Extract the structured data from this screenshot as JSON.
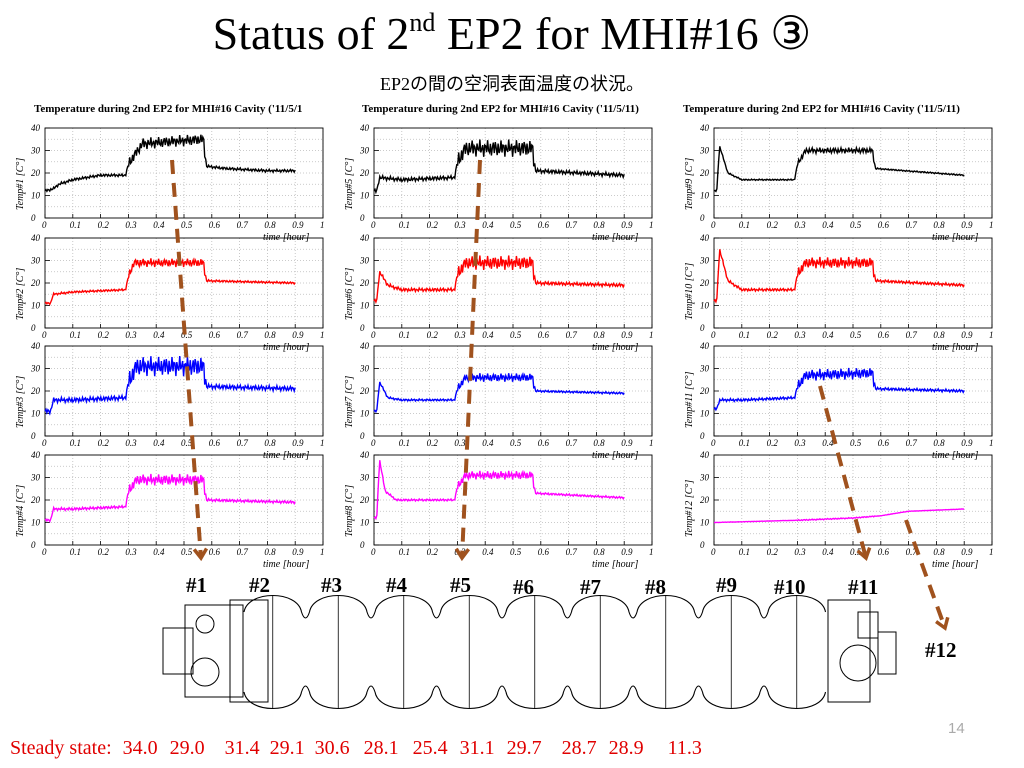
{
  "slide": {
    "title_main": "Status of 2",
    "title_sup": "nd",
    "title_rest": " EP2 for MHI#16 ③",
    "subtitle": "EP2の間の空洞表面温度の状況。",
    "page_number": "14",
    "column_titles": [
      "Temperature during 2nd EP2 for MHI#16 Cavity ('11/5/1",
      "Temperature during 2nd EP2 for MHI#16 Cavity ('11/5/11)",
      "Temperature during 2nd EP2 for MHI#16 Cavity ('11/5/11)"
    ],
    "cell_markers": [
      "#1",
      "#2",
      "#3",
      "#4",
      "#5",
      "#6",
      "#7",
      "#8",
      "#9",
      "#10",
      "#11",
      "#12"
    ],
    "steady_label": "Steady state:",
    "steady_values": [
      "34.0",
      "29.0",
      "31.4",
      "29.1",
      "30.6",
      "28.1",
      "25.4",
      "31.1",
      "29.7",
      "28.7",
      "28.9",
      "11.3"
    ]
  },
  "chart_data": [
    {
      "type": "line",
      "name": "Temp#1",
      "color": "#000000",
      "ylabel": "Temp#1 [C°]",
      "xlabel": "time [hour]",
      "xlim": [
        0,
        1
      ],
      "ylim": [
        0,
        40
      ],
      "grid": true,
      "points": [
        [
          0,
          12
        ],
        [
          0.03,
          13
        ],
        [
          0.05,
          15
        ],
        [
          0.1,
          17
        ],
        [
          0.2,
          19
        ],
        [
          0.29,
          19
        ],
        [
          0.3,
          24
        ],
        [
          0.35,
          33
        ],
        [
          0.45,
          34
        ],
        [
          0.57,
          35
        ],
        [
          0.58,
          23
        ],
        [
          0.65,
          22
        ],
        [
          0.8,
          21
        ],
        [
          0.9,
          21
        ]
      ],
      "ripple": 2.0
    },
    {
      "type": "line",
      "name": "Temp#2",
      "color": "#ff0000",
      "ylabel": "Temp#2 [C°]",
      "xlabel": "time [hour]",
      "xlim": [
        0,
        1
      ],
      "ylim": [
        0,
        40
      ],
      "grid": true,
      "points": [
        [
          0,
          11
        ],
        [
          0.02,
          11
        ],
        [
          0.03,
          15
        ],
        [
          0.1,
          16
        ],
        [
          0.29,
          17
        ],
        [
          0.3,
          23
        ],
        [
          0.32,
          29
        ],
        [
          0.57,
          29
        ],
        [
          0.58,
          21
        ],
        [
          0.9,
          20
        ]
      ],
      "ripple": 1.5
    },
    {
      "type": "line",
      "name": "Temp#3",
      "color": "#0000ff",
      "ylabel": "Temp#3 [C°]",
      "xlabel": "time [hour]",
      "xlim": [
        0,
        1
      ],
      "ylim": [
        0,
        40
      ],
      "grid": true,
      "points": [
        [
          0,
          11
        ],
        [
          0.02,
          11
        ],
        [
          0.03,
          16
        ],
        [
          0.1,
          16
        ],
        [
          0.29,
          17
        ],
        [
          0.3,
          24
        ],
        [
          0.33,
          31
        ],
        [
          0.57,
          31
        ],
        [
          0.58,
          22
        ],
        [
          0.9,
          21
        ]
      ],
      "ripple": 3.5
    },
    {
      "type": "line",
      "name": "Temp#4",
      "color": "#ff00ff",
      "ylabel": "Temp#4 [C°]",
      "xlabel": "time [hour]",
      "xlim": [
        0,
        1
      ],
      "ylim": [
        0,
        40
      ],
      "grid": true,
      "points": [
        [
          0,
          11
        ],
        [
          0.02,
          11
        ],
        [
          0.03,
          16
        ],
        [
          0.1,
          16
        ],
        [
          0.29,
          17
        ],
        [
          0.3,
          24
        ],
        [
          0.33,
          29
        ],
        [
          0.57,
          29
        ],
        [
          0.58,
          20
        ],
        [
          0.9,
          19
        ]
      ],
      "ripple": 2.0
    },
    {
      "type": "line",
      "name": "Temp#5",
      "color": "#000000",
      "ylabel": "Temp#5 [C°]",
      "xlabel": "time [hour]",
      "xlim": [
        0,
        1
      ],
      "ylim": [
        0,
        40
      ],
      "grid": true,
      "points": [
        [
          0,
          12
        ],
        [
          0.01,
          12
        ],
        [
          0.02,
          18
        ],
        [
          0.1,
          17
        ],
        [
          0.29,
          18
        ],
        [
          0.3,
          25
        ],
        [
          0.33,
          31
        ],
        [
          0.57,
          31
        ],
        [
          0.58,
          21
        ],
        [
          0.9,
          19
        ]
      ],
      "ripple": 3.0
    },
    {
      "type": "line",
      "name": "Temp#6",
      "color": "#ff0000",
      "ylabel": "Temp#6 [C°]",
      "xlabel": "time [hour]",
      "xlim": [
        0,
        1
      ],
      "ylim": [
        0,
        40
      ],
      "grid": true,
      "points": [
        [
          0,
          12
        ],
        [
          0.01,
          12
        ],
        [
          0.02,
          25
        ],
        [
          0.05,
          19
        ],
        [
          0.1,
          17
        ],
        [
          0.29,
          17
        ],
        [
          0.3,
          24
        ],
        [
          0.33,
          29
        ],
        [
          0.57,
          29
        ],
        [
          0.58,
          20
        ],
        [
          0.9,
          19
        ]
      ],
      "ripple": 2.5
    },
    {
      "type": "line",
      "name": "Temp#7",
      "color": "#0000ff",
      "ylabel": "Temp#7 [C°]",
      "xlabel": "time [hour]",
      "xlim": [
        0,
        1
      ],
      "ylim": [
        0,
        40
      ],
      "grid": true,
      "points": [
        [
          0,
          11
        ],
        [
          0.01,
          11
        ],
        [
          0.02,
          24
        ],
        [
          0.05,
          17
        ],
        [
          0.1,
          16
        ],
        [
          0.29,
          16
        ],
        [
          0.3,
          21
        ],
        [
          0.33,
          26
        ],
        [
          0.57,
          26
        ],
        [
          0.58,
          20
        ],
        [
          0.9,
          19
        ]
      ],
      "ripple": 1.5
    },
    {
      "type": "line",
      "name": "Temp#8",
      "color": "#ff00ff",
      "ylabel": "Temp#8 [C°]",
      "xlabel": "time [hour]",
      "xlim": [
        0,
        1
      ],
      "ylim": [
        0,
        40
      ],
      "grid": true,
      "points": [
        [
          0,
          12
        ],
        [
          0.01,
          12
        ],
        [
          0.02,
          38
        ],
        [
          0.04,
          24
        ],
        [
          0.08,
          20
        ],
        [
          0.29,
          20
        ],
        [
          0.3,
          26
        ],
        [
          0.33,
          31
        ],
        [
          0.57,
          31
        ],
        [
          0.58,
          23
        ],
        [
          0.9,
          21
        ]
      ],
      "ripple": 1.5
    },
    {
      "type": "line",
      "name": "Temp#9",
      "color": "#000000",
      "ylabel": "Temp#9 [C°]",
      "xlabel": "time [hour]",
      "xlim": [
        0,
        1
      ],
      "ylim": [
        0,
        40
      ],
      "grid": true,
      "points": [
        [
          0,
          12
        ],
        [
          0.01,
          12
        ],
        [
          0.02,
          32
        ],
        [
          0.05,
          20
        ],
        [
          0.1,
          17
        ],
        [
          0.29,
          17
        ],
        [
          0.3,
          24
        ],
        [
          0.33,
          30
        ],
        [
          0.57,
          30
        ],
        [
          0.58,
          22
        ],
        [
          0.9,
          19
        ]
      ],
      "ripple": 1.0
    },
    {
      "type": "line",
      "name": "Temp#10",
      "color": "#ff0000",
      "ylabel": "Temp#10 [C°]",
      "xlabel": "time [hour]",
      "xlim": [
        0,
        1
      ],
      "ylim": [
        0,
        40
      ],
      "grid": true,
      "points": [
        [
          0,
          12
        ],
        [
          0.01,
          12
        ],
        [
          0.02,
          35
        ],
        [
          0.05,
          21
        ],
        [
          0.1,
          17
        ],
        [
          0.29,
          17
        ],
        [
          0.3,
          24
        ],
        [
          0.33,
          29
        ],
        [
          0.57,
          29
        ],
        [
          0.58,
          21
        ],
        [
          0.9,
          19
        ]
      ],
      "ripple": 2.0
    },
    {
      "type": "line",
      "name": "Temp#11",
      "color": "#0000ff",
      "ylabel": "Temp#11 [C°]",
      "xlabel": "time [hour]",
      "xlim": [
        0,
        1
      ],
      "ylim": [
        0,
        40
      ],
      "grid": true,
      "points": [
        [
          0,
          12
        ],
        [
          0.01,
          12
        ],
        [
          0.02,
          16
        ],
        [
          0.1,
          16
        ],
        [
          0.29,
          17
        ],
        [
          0.3,
          22
        ],
        [
          0.33,
          27
        ],
        [
          0.57,
          28
        ],
        [
          0.58,
          21
        ],
        [
          0.9,
          20
        ]
      ],
      "ripple": 2.0
    },
    {
      "type": "line",
      "name": "Temp#12",
      "color": "#ff00ff",
      "ylabel": "Temp#12 [C°]",
      "xlabel": "time [hour]",
      "xlim": [
        0,
        1
      ],
      "ylim": [
        0,
        40
      ],
      "grid": true,
      "points": [
        [
          0,
          10
        ],
        [
          0.3,
          11
        ],
        [
          0.5,
          12
        ],
        [
          0.6,
          13
        ],
        [
          0.7,
          15
        ],
        [
          0.9,
          16
        ]
      ],
      "ripple": 0.2
    }
  ]
}
